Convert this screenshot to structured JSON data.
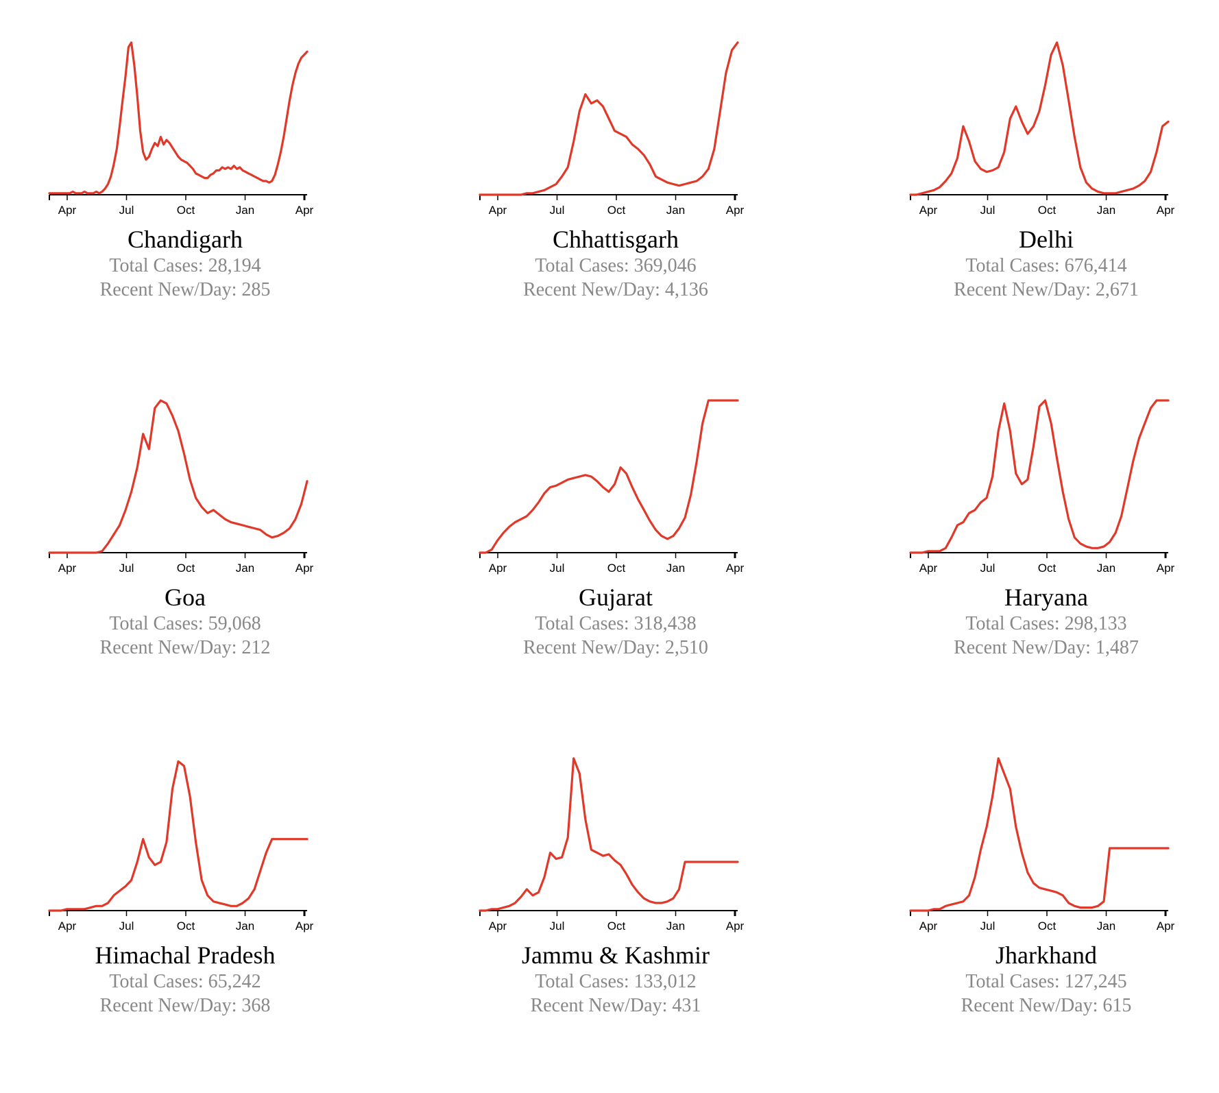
{
  "colors": {
    "line": "#e0392a",
    "axis": "#000000",
    "stat_text": "#888888",
    "title_text": "#000000"
  },
  "panels": [
    {
      "name": "Chandigarh",
      "total_cases": "Total Cases: 28,194",
      "recent": "Recent New/Day: 285"
    },
    {
      "name": "Chhattisgarh",
      "total_cases": "Total Cases: 369,046",
      "recent": "Recent New/Day: 4,136"
    },
    {
      "name": "Delhi",
      "total_cases": "Total Cases: 676,414",
      "recent": "Recent New/Day: 2,671"
    },
    {
      "name": "Goa",
      "total_cases": "Total Cases: 59,068",
      "recent": "Recent New/Day: 212"
    },
    {
      "name": "Gujarat",
      "total_cases": "Total Cases: 318,438",
      "recent": "Recent New/Day: 2,510"
    },
    {
      "name": "Haryana",
      "total_cases": "Total Cases: 298,133",
      "recent": "Recent New/Day: 1,487"
    },
    {
      "name": "Himachal Pradesh",
      "total_cases": "Total Cases: 65,242",
      "recent": "Recent New/Day: 368"
    },
    {
      "name": "Jammu & Kashmir",
      "total_cases": "Total Cases: 133,012",
      "recent": "Recent New/Day: 431"
    },
    {
      "name": "Jharkhand",
      "total_cases": "Total Cases: 127,245",
      "recent": "Recent New/Day: 615"
    }
  ],
  "chart_data": [
    {
      "type": "line",
      "title": "Chandigarh",
      "x_tick_labels": [
        "Apr",
        "Jul",
        "Oct",
        "Jan",
        "Apr"
      ],
      "x": [
        0,
        0.05,
        0.1,
        0.15,
        0.2,
        0.25,
        0.3,
        0.35,
        0.4,
        0.45,
        0.5,
        0.55,
        0.6,
        0.65,
        0.7,
        0.75,
        0.8,
        0.85,
        0.9,
        0.95,
        1.0,
        1.05,
        1.1,
        1.15,
        1.2,
        1.25,
        1.3,
        1.35,
        1.4,
        1.45,
        1.5,
        1.55,
        1.6,
        1.65,
        1.7,
        1.75,
        1.8,
        1.85,
        1.9,
        1.95,
        2.0,
        2.05,
        2.1,
        2.15,
        2.2,
        2.25,
        2.3,
        2.35,
        2.4,
        2.45,
        2.5,
        2.55,
        2.6,
        2.65,
        2.7,
        2.75,
        2.8,
        2.85,
        2.9,
        2.95,
        3.0,
        3.05,
        3.1,
        3.15,
        3.2,
        3.25,
        3.3,
        3.35,
        3.4,
        3.45,
        3.5,
        3.55,
        3.6,
        3.65,
        3.7,
        3.75,
        3.8,
        3.85,
        3.9,
        3.95,
        4.0,
        4.05,
        4.1,
        4.15,
        4.2,
        4.25,
        4.3,
        4.35,
        4.4
      ],
      "y": [
        1,
        1,
        1,
        1,
        1,
        1,
        1,
        1,
        2,
        1,
        1,
        1,
        2,
        1,
        1,
        1,
        2,
        1,
        2,
        4,
        7,
        12,
        20,
        30,
        45,
        62,
        78,
        97,
        100,
        85,
        65,
        42,
        28,
        23,
        25,
        30,
        34,
        32,
        38,
        33,
        36,
        34,
        31,
        28,
        25,
        23,
        22,
        21,
        19,
        17,
        14,
        13,
        12,
        11,
        11,
        13,
        14,
        16,
        16,
        18,
        17,
        18,
        17,
        19,
        17,
        18,
        16,
        15,
        14,
        13,
        12,
        11,
        10,
        9,
        9,
        8,
        9,
        13,
        20,
        28,
        38,
        50,
        62,
        72,
        80,
        86,
        90,
        92,
        94
      ],
      "ylabel": ""
    },
    {
      "type": "line",
      "title": "Chhattisgarh",
      "x_tick_labels": [
        "Apr",
        "Jul",
        "Oct",
        "Jan",
        "Apr"
      ],
      "x": [
        0,
        0.1,
        0.2,
        0.3,
        0.4,
        0.5,
        0.6,
        0.7,
        0.8,
        0.9,
        1.0,
        1.1,
        1.2,
        1.3,
        1.4,
        1.5,
        1.6,
        1.7,
        1.8,
        1.9,
        2.0,
        2.1,
        2.2,
        2.3,
        2.4,
        2.5,
        2.6,
        2.7,
        2.8,
        2.9,
        3.0,
        3.1,
        3.2,
        3.3,
        3.4,
        3.5,
        3.6,
        3.7,
        3.8,
        3.9,
        4.0,
        4.1,
        4.2,
        4.3,
        4.4
      ],
      "y": [
        0,
        0,
        0,
        0,
        0,
        0,
        0,
        0,
        1,
        1,
        2,
        3,
        5,
        7,
        12,
        18,
        35,
        55,
        66,
        60,
        62,
        58,
        50,
        42,
        40,
        38,
        33,
        30,
        26,
        20,
        12,
        10,
        8,
        7,
        6,
        7,
        8,
        9,
        12,
        17,
        30,
        55,
        80,
        95,
        100
      ],
      "ylabel": ""
    },
    {
      "type": "line",
      "title": "Delhi",
      "x_tick_labels": [
        "Apr",
        "Jul",
        "Oct",
        "Jan",
        "Apr"
      ],
      "x": [
        0,
        0.1,
        0.2,
        0.3,
        0.4,
        0.5,
        0.6,
        0.7,
        0.8,
        0.9,
        1.0,
        1.1,
        1.2,
        1.3,
        1.4,
        1.5,
        1.6,
        1.7,
        1.8,
        1.9,
        2.0,
        2.1,
        2.2,
        2.3,
        2.4,
        2.5,
        2.6,
        2.7,
        2.8,
        2.9,
        3.0,
        3.1,
        3.2,
        3.3,
        3.4,
        3.5,
        3.6,
        3.7,
        3.8,
        3.9,
        4.0,
        4.1,
        4.2,
        4.3,
        4.4
      ],
      "y": [
        0,
        0,
        1,
        2,
        3,
        5,
        9,
        14,
        24,
        45,
        35,
        22,
        17,
        15,
        16,
        18,
        28,
        50,
        58,
        48,
        40,
        45,
        55,
        72,
        92,
        100,
        85,
        62,
        38,
        18,
        8,
        4,
        2,
        1,
        1,
        1,
        2,
        3,
        4,
        6,
        9,
        15,
        28,
        45,
        48
      ],
      "ylabel": ""
    },
    {
      "type": "line",
      "title": "Goa",
      "x_tick_labels": [
        "Apr",
        "Jul",
        "Oct",
        "Jan",
        "Apr"
      ],
      "x": [
        0,
        0.1,
        0.2,
        0.3,
        0.4,
        0.5,
        0.6,
        0.7,
        0.8,
        0.9,
        1.0,
        1.1,
        1.2,
        1.3,
        1.4,
        1.5,
        1.6,
        1.7,
        1.8,
        1.9,
        2.0,
        2.1,
        2.2,
        2.3,
        2.4,
        2.5,
        2.6,
        2.7,
        2.8,
        2.9,
        3.0,
        3.1,
        3.2,
        3.3,
        3.4,
        3.5,
        3.6,
        3.7,
        3.8,
        3.9,
        4.0,
        4.1,
        4.2,
        4.3,
        4.4
      ],
      "y": [
        0,
        0,
        0,
        0,
        0,
        0,
        0,
        0,
        0,
        1,
        6,
        12,
        18,
        28,
        40,
        56,
        78,
        68,
        95,
        100,
        98,
        90,
        80,
        65,
        48,
        36,
        30,
        26,
        28,
        25,
        22,
        20,
        19,
        18,
        17,
        16,
        15,
        12,
        10,
        11,
        13,
        16,
        22,
        32,
        47
      ],
      "ylabel": ""
    },
    {
      "type": "line",
      "title": "Gujarat",
      "x_tick_labels": [
        "Apr",
        "Jul",
        "Oct",
        "Jan",
        "Apr"
      ],
      "x": [
        0,
        0.1,
        0.2,
        0.3,
        0.4,
        0.5,
        0.6,
        0.7,
        0.8,
        0.9,
        1.0,
        1.1,
        1.2,
        1.3,
        1.4,
        1.5,
        1.6,
        1.7,
        1.8,
        1.9,
        2.0,
        2.1,
        2.2,
        2.3,
        2.4,
        2.5,
        2.6,
        2.7,
        2.8,
        2.9,
        3.0,
        3.1,
        3.2,
        3.3,
        3.4,
        3.5,
        3.6,
        3.7,
        3.8,
        3.9,
        4.0,
        4.1,
        4.2,
        4.3,
        4.4
      ],
      "y": [
        0,
        0,
        2,
        8,
        13,
        17,
        20,
        22,
        24,
        28,
        33,
        39,
        43,
        44,
        46,
        48,
        49,
        50,
        51,
        50,
        47,
        43,
        40,
        45,
        56,
        52,
        43,
        35,
        28,
        21,
        15,
        11,
        9,
        11,
        16,
        23,
        38,
        60,
        85,
        100,
        100,
        100,
        100,
        100,
        100
      ],
      "ylabel": ""
    },
    {
      "type": "line",
      "title": "Haryana",
      "x_tick_labels": [
        "Apr",
        "Jul",
        "Oct",
        "Jan",
        "Apr"
      ],
      "x": [
        0,
        0.1,
        0.2,
        0.3,
        0.4,
        0.5,
        0.6,
        0.7,
        0.8,
        0.9,
        1.0,
        1.1,
        1.2,
        1.3,
        1.4,
        1.5,
        1.6,
        1.7,
        1.8,
        1.9,
        2.0,
        2.1,
        2.2,
        2.3,
        2.4,
        2.5,
        2.6,
        2.7,
        2.8,
        2.9,
        3.0,
        3.1,
        3.2,
        3.3,
        3.4,
        3.5,
        3.6,
        3.7,
        3.8,
        3.9,
        4.0,
        4.1,
        4.2,
        4.3,
        4.4
      ],
      "y": [
        0,
        0,
        0,
        1,
        1,
        1,
        3,
        10,
        18,
        20,
        26,
        28,
        33,
        36,
        50,
        80,
        98,
        80,
        52,
        45,
        48,
        70,
        96,
        100,
        85,
        62,
        40,
        22,
        10,
        6,
        4,
        3,
        3,
        4,
        7,
        13,
        24,
        42,
        60,
        75,
        85,
        95,
        100,
        100,
        100
      ],
      "ylabel": ""
    },
    {
      "type": "line",
      "title": "Himachal Pradesh",
      "x_tick_labels": [
        "Apr",
        "Jul",
        "Oct",
        "Jan",
        "Apr"
      ],
      "x": [
        0,
        0.1,
        0.2,
        0.3,
        0.4,
        0.5,
        0.6,
        0.7,
        0.8,
        0.9,
        1.0,
        1.1,
        1.2,
        1.3,
        1.4,
        1.5,
        1.6,
        1.7,
        1.8,
        1.9,
        2.0,
        2.1,
        2.2,
        2.3,
        2.4,
        2.5,
        2.6,
        2.7,
        2.8,
        2.9,
        3.0,
        3.1,
        3.2,
        3.3,
        3.4,
        3.5,
        3.6,
        3.7,
        3.8,
        3.9,
        4.0,
        4.1,
        4.2,
        4.3,
        4.4
      ],
      "y": [
        0,
        0,
        0,
        1,
        1,
        1,
        1,
        2,
        3,
        3,
        5,
        10,
        13,
        16,
        20,
        32,
        47,
        35,
        30,
        32,
        45,
        80,
        98,
        95,
        75,
        45,
        20,
        10,
        6,
        5,
        4,
        3,
        3,
        5,
        8,
        14,
        26,
        38,
        47,
        47,
        47,
        47,
        47,
        47,
        47
      ],
      "ylabel": ""
    },
    {
      "type": "line",
      "title": "Jammu & Kashmir",
      "x_tick_labels": [
        "Apr",
        "Jul",
        "Oct",
        "Jan",
        "Apr"
      ],
      "x": [
        0,
        0.1,
        0.2,
        0.3,
        0.4,
        0.5,
        0.6,
        0.7,
        0.8,
        0.9,
        1.0,
        1.1,
        1.2,
        1.3,
        1.4,
        1.5,
        1.6,
        1.7,
        1.8,
        1.9,
        2.0,
        2.1,
        2.2,
        2.3,
        2.4,
        2.5,
        2.6,
        2.7,
        2.8,
        2.9,
        3.0,
        3.1,
        3.2,
        3.3,
        3.4,
        3.5,
        3.6,
        3.7,
        3.8,
        3.9,
        4.0,
        4.1,
        4.2,
        4.3,
        4.4
      ],
      "y": [
        0,
        0,
        1,
        1,
        2,
        3,
        5,
        9,
        14,
        10,
        12,
        22,
        38,
        34,
        35,
        48,
        100,
        90,
        60,
        40,
        38,
        36,
        37,
        33,
        30,
        24,
        17,
        12,
        8,
        6,
        5,
        5,
        6,
        8,
        14,
        32,
        32,
        32,
        32,
        32,
        32,
        32,
        32,
        32,
        32
      ],
      "ylabel": ""
    },
    {
      "type": "line",
      "title": "Jharkhand",
      "x_tick_labels": [
        "Apr",
        "Jul",
        "Oct",
        "Jan",
        "Apr"
      ],
      "x": [
        0,
        0.1,
        0.2,
        0.3,
        0.4,
        0.5,
        0.6,
        0.7,
        0.8,
        0.9,
        1.0,
        1.1,
        1.2,
        1.3,
        1.4,
        1.5,
        1.6,
        1.7,
        1.8,
        1.9,
        2.0,
        2.1,
        2.2,
        2.3,
        2.4,
        2.5,
        2.6,
        2.7,
        2.8,
        2.9,
        3.0,
        3.1,
        3.2,
        3.3,
        3.4,
        3.5,
        3.6,
        3.7,
        3.8,
        3.9,
        4.0,
        4.1,
        4.2,
        4.3,
        4.4
      ],
      "y": [
        0,
        0,
        0,
        0,
        1,
        1,
        3,
        4,
        5,
        6,
        10,
        22,
        40,
        55,
        75,
        100,
        90,
        80,
        55,
        38,
        25,
        18,
        15,
        14,
        13,
        12,
        10,
        5,
        3,
        2,
        2,
        2,
        3,
        6,
        41,
        41,
        41,
        41,
        41,
        41,
        41,
        41,
        41,
        41,
        41
      ],
      "ylabel": ""
    }
  ]
}
